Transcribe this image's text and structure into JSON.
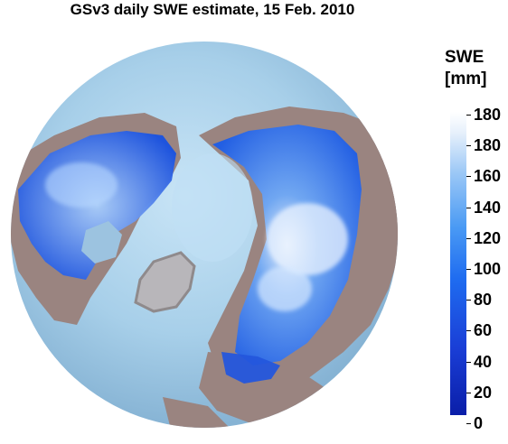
{
  "title": "GSv3 daily SWE estimate, 15 Feb. 2010",
  "legend": {
    "title_line1": "SWE",
    "title_line2": "[mm]",
    "ticks": [
      "180",
      "180",
      "160",
      "140",
      "120",
      "100",
      "80",
      "60",
      "40",
      "20",
      "0"
    ]
  },
  "colors": {
    "ocean": "#9cc3e0",
    "land": "#9a8480",
    "snow_low": "#0a1ea8",
    "snow_mid": "#1f6cf0",
    "snow_high": "#ffffff",
    "ice": "#b8b8bc"
  }
}
